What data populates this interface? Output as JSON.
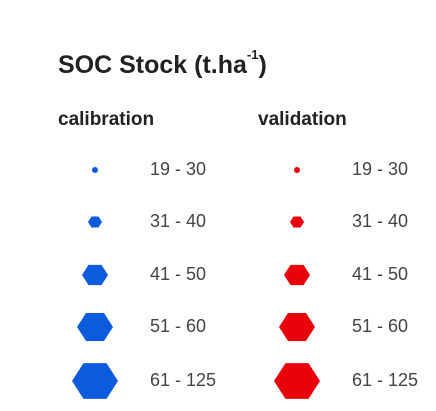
{
  "title": {
    "text": "SOC Stock (t.ha",
    "superscript": "-1",
    "end": ")"
  },
  "columns": [
    {
      "header": "calibration",
      "color": "#0b5bdc",
      "items": [
        "19 - 30",
        "31 - 40",
        "41 - 50",
        "51 - 60",
        "61 - 125"
      ]
    },
    {
      "header": "validation",
      "color": "#e8000a",
      "items": [
        "19 - 30",
        "31 - 40",
        "41 - 50",
        "51 - 60",
        "61 - 125"
      ]
    }
  ]
}
